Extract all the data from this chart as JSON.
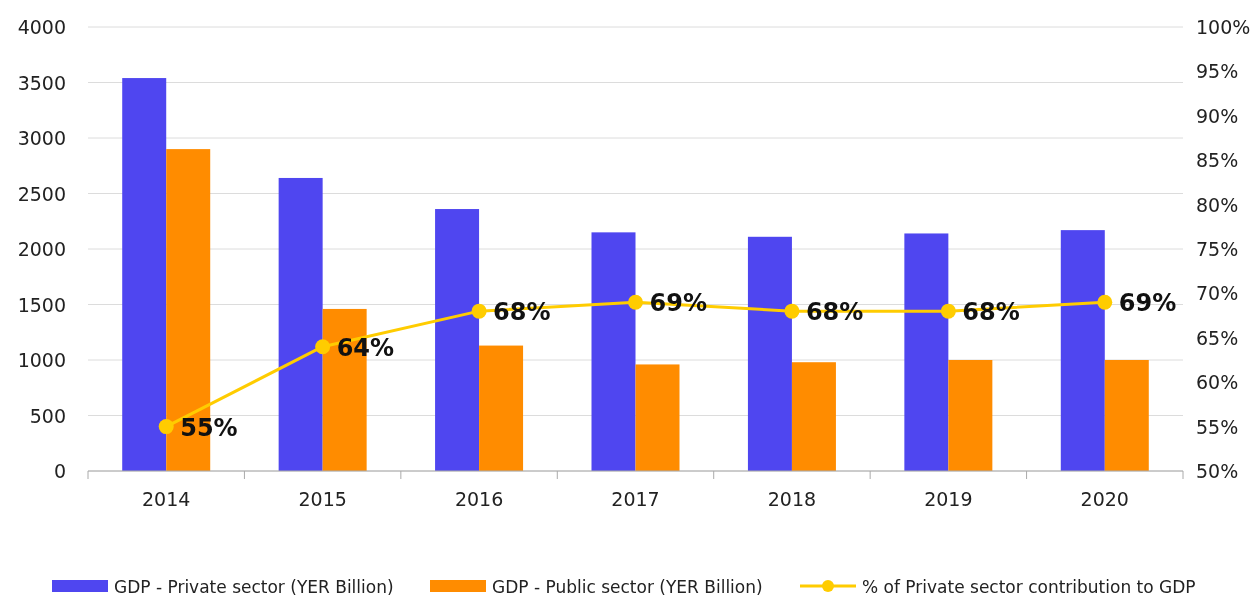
{
  "chart_data": {
    "type": "bar",
    "categories": [
      "2014",
      "2015",
      "2016",
      "2017",
      "2018",
      "2019",
      "2020"
    ],
    "series": [
      {
        "name": "GDP - Private sector (YER Billion)",
        "color": "#4f46f0",
        "values": [
          3540,
          2640,
          2360,
          2150,
          2110,
          2140,
          2170
        ]
      },
      {
        "name": "GDP - Public sector (YER Billion)",
        "color": "#ff8c00",
        "values": [
          2900,
          1460,
          1130,
          960,
          980,
          1000,
          1000
        ]
      },
      {
        "name": "% of Private sector contribution to GDP",
        "type": "line",
        "axis": "y2",
        "color": "#ffcc00",
        "marker": "circle",
        "data_labels": true,
        "values": [
          55,
          64,
          68,
          69,
          68,
          68,
          69
        ],
        "value_labels": [
          "55%",
          "64%",
          "68%",
          "69%",
          "68%",
          "68%",
          "69%"
        ]
      }
    ],
    "ylim": [
      0,
      4000
    ],
    "yticks": [
      0,
      500,
      1000,
      1500,
      2000,
      2500,
      3000,
      3500,
      4000
    ],
    "y2lim": [
      50,
      100
    ],
    "y2ticks": [
      {
        "value": 50,
        "label": "50%"
      },
      {
        "value": 55,
        "label": "55%"
      },
      {
        "value": 60,
        "label": "60%"
      },
      {
        "value": 65,
        "label": "65%"
      },
      {
        "value": 70,
        "label": "70%"
      },
      {
        "value": 75,
        "label": "75%"
      },
      {
        "value": 80,
        "label": "80%"
      },
      {
        "value": 85,
        "label": "85%"
      },
      {
        "value": 90,
        "label": "90%"
      },
      {
        "value": 95,
        "label": "95%"
      },
      {
        "value": 100,
        "label": "100%"
      }
    ],
    "grid": "y",
    "legend": "bottom"
  }
}
